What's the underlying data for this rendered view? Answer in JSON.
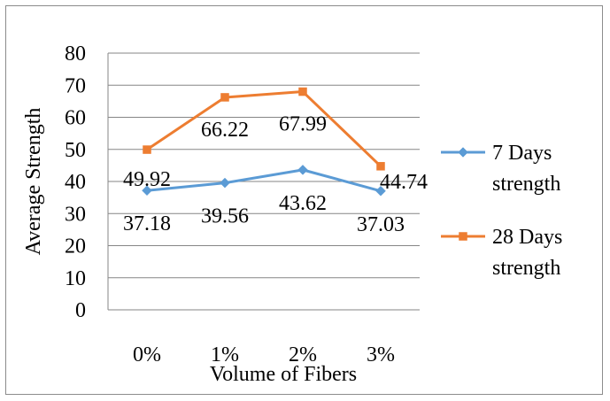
{
  "chart_data": {
    "type": "line",
    "categories": [
      "0%",
      "1%",
      "2%",
      "3%"
    ],
    "series": [
      {
        "name": "7 Days strength",
        "values": [
          37.18,
          39.56,
          43.62,
          37.03
        ],
        "color": "#5b9bd5",
        "marker": "diamond"
      },
      {
        "name": "28 Days strength",
        "values": [
          49.92,
          66.22,
          67.99,
          44.74
        ],
        "color": "#ed7d31",
        "marker": "square"
      }
    ],
    "legend_lines": [
      [
        "7 Days",
        "strength"
      ],
      [
        "28 Days",
        "strength"
      ]
    ],
    "data_labels": [
      [
        "37.18",
        "39.56",
        "43.62",
        "37.03"
      ],
      [
        "49.92",
        "66.22",
        "67.99",
        "44.74"
      ]
    ],
    "xlabel": "Volume of Fibers",
    "ylabel": "Average Strength",
    "ylim": [
      0,
      80
    ],
    "yticks": [
      0,
      10,
      20,
      30,
      40,
      50,
      60,
      70,
      80
    ],
    "grid": true,
    "legend_position": "right"
  }
}
